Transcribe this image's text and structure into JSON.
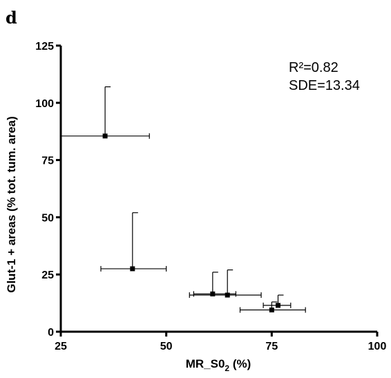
{
  "panel_label": "d",
  "chart_data": {
    "type": "scatter",
    "xlabel": "MR_S0",
    "xlabel_sub": "2",
    "xlabel_suffix": " (%)",
    "ylabel": "Glut-1 + areas (% tot. tum. area)",
    "xlim": [
      25,
      100
    ],
    "ylim": [
      0,
      125
    ],
    "x_ticks": [
      25,
      50,
      75,
      100
    ],
    "y_ticks": [
      0,
      25,
      50,
      75,
      100,
      125
    ],
    "grid": false,
    "annotations": [
      "R²=0.82",
      "SDE=13.34"
    ],
    "points": [
      {
        "x": 35.5,
        "y": 85.5,
        "x_err_low": 25,
        "x_err_high": 46,
        "y_err_high": 107
      },
      {
        "x": 42.0,
        "y": 27.5,
        "x_err_low": 34.5,
        "x_err_high": 50,
        "y_err_high": 52
      },
      {
        "x": 61.0,
        "y": 16.5,
        "x_err_low": 56.5,
        "x_err_high": 66.5,
        "y_err_high": 26
      },
      {
        "x": 64.5,
        "y": 16.0,
        "x_err_low": 55.5,
        "x_err_high": 72.5,
        "y_err_high": 27
      },
      {
        "x": 76.5,
        "y": 11.5,
        "x_err_low": 73,
        "x_err_high": 79.5,
        "y_err_high": 16
      },
      {
        "x": 75.0,
        "y": 9.5,
        "x_err_low": 67.5,
        "x_err_high": 83,
        "y_err_high": 13
      }
    ]
  }
}
